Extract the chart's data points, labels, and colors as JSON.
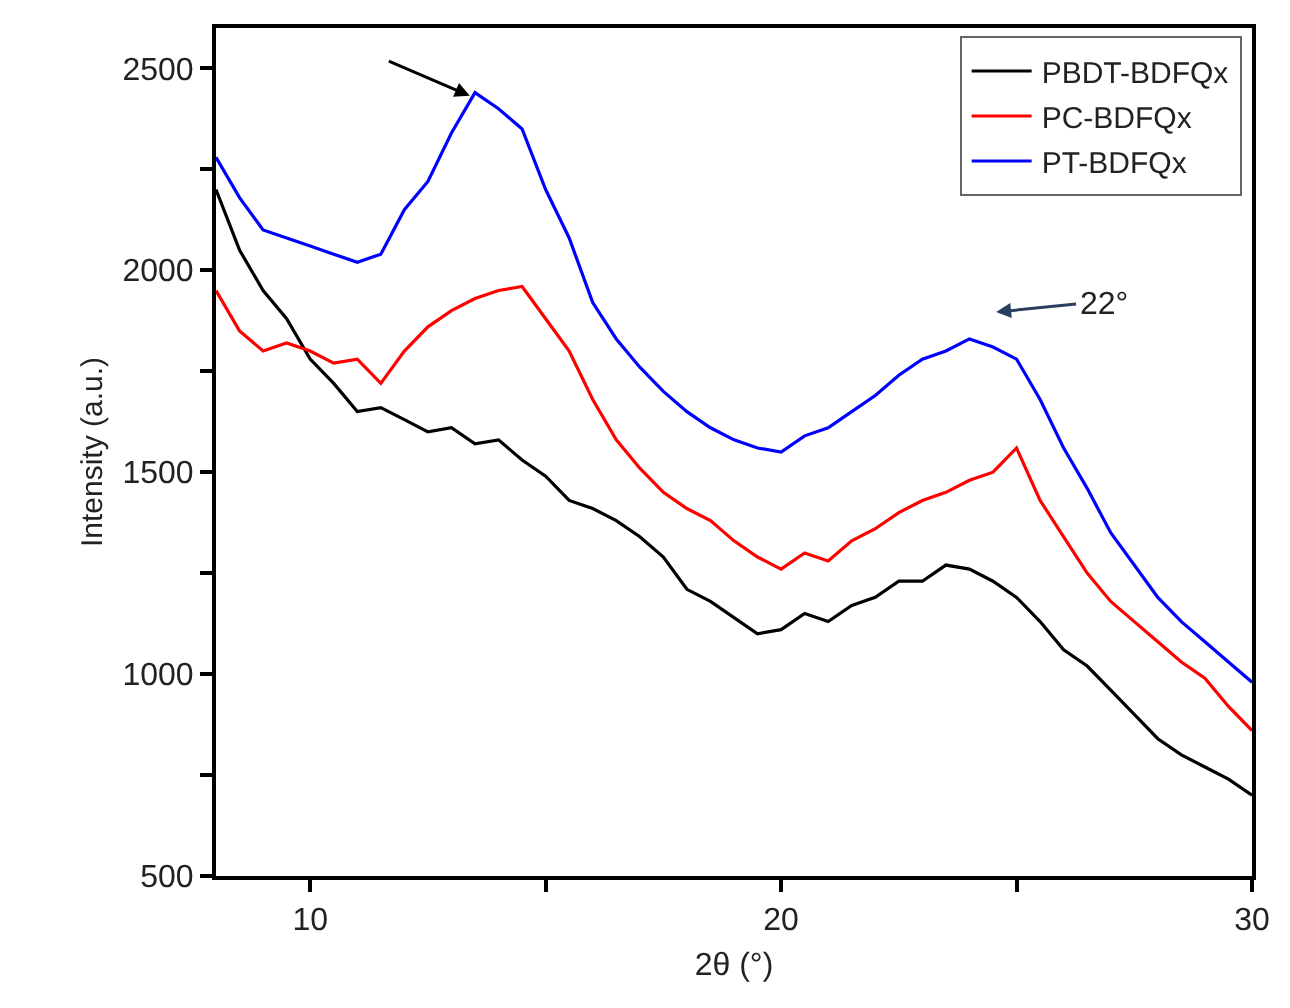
{
  "chart_data": {
    "type": "line",
    "xlabel": "2θ (°)",
    "ylabel": "Intensity (a.u.)",
    "xlim": [
      8,
      30
    ],
    "xticks": [
      10,
      {
        "value": 15,
        "label": null
      },
      20,
      {
        "value": 25,
        "label": null
      },
      30
    ],
    "ylim": [
      500,
      2600
    ],
    "yticks": [
      500,
      {
        "value": 750,
        "label": null
      },
      1000,
      {
        "value": 1250,
        "label": null
      },
      1500,
      {
        "value": 1750,
        "label": null
      },
      2000,
      {
        "value": 2250,
        "label": null
      },
      2500
    ],
    "legend": "top right",
    "marker": "none",
    "line_style": "solid",
    "x": [
      8,
      8.5,
      9,
      9.5,
      10,
      10.5,
      11,
      11.5,
      12,
      12.5,
      13,
      13.5,
      14,
      14.5,
      15,
      15.5,
      16,
      16.5,
      17,
      17.5,
      18,
      18.5,
      19,
      19.5,
      20,
      20.5,
      21,
      21.5,
      22,
      22.5,
      23,
      23.5,
      24,
      24.5,
      25,
      25.5,
      26,
      26.5,
      27,
      27.5,
      28,
      28.5,
      29,
      29.5,
      30
    ],
    "series": [
      {
        "name": "PBDT-BDFQx",
        "color": "#000000",
        "values": [
          2200,
          2050,
          1950,
          1880,
          1780,
          1720,
          1650,
          1660,
          1630,
          1600,
          1610,
          1570,
          1580,
          1530,
          1490,
          1430,
          1410,
          1380,
          1340,
          1290,
          1210,
          1180,
          1140,
          1100,
          1110,
          1150,
          1130,
          1170,
          1190,
          1230,
          1230,
          1270,
          1260,
          1230,
          1190,
          1130,
          1060,
          1020,
          960,
          900,
          840,
          800,
          770,
          740,
          700
        ]
      },
      {
        "name": "PC-BDFQx",
        "color": "#ff0000",
        "values": [
          1950,
          1850,
          1800,
          1820,
          1800,
          1770,
          1780,
          1720,
          1800,
          1860,
          1900,
          1930,
          1950,
          1960,
          1880,
          1800,
          1680,
          1580,
          1510,
          1450,
          1410,
          1380,
          1330,
          1290,
          1260,
          1300,
          1280,
          1330,
          1360,
          1400,
          1430,
          1450,
          1480,
          1500,
          1560,
          1430,
          1340,
          1250,
          1180,
          1130,
          1080,
          1030,
          990,
          920,
          860
        ]
      },
      {
        "name": "PT-BDFQx",
        "color": "#0000ff",
        "values": [
          2280,
          2180,
          2100,
          2080,
          2060,
          2040,
          2020,
          2040,
          2150,
          2220,
          2340,
          2440,
          2400,
          2350,
          2200,
          2080,
          1920,
          1830,
          1760,
          1700,
          1650,
          1610,
          1580,
          1560,
          1550,
          1590,
          1610,
          1650,
          1690,
          1740,
          1780,
          1800,
          1830,
          1810,
          1780,
          1680,
          1560,
          1460,
          1350,
          1270,
          1190,
          1130,
          1080,
          1030,
          980
        ]
      }
    ],
    "annotations": [
      "22°"
    ]
  }
}
